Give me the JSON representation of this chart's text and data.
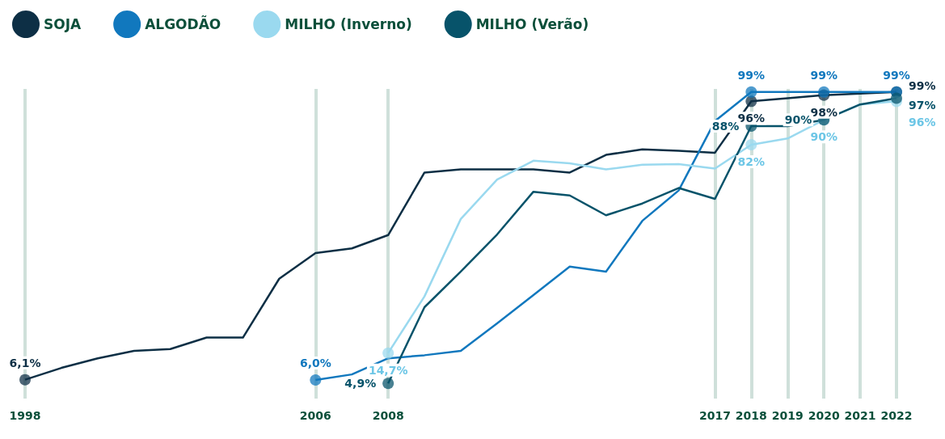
{
  "chart_data": {
    "type": "line",
    "categories": [
      "1998",
      null,
      null,
      null,
      null,
      null,
      null,
      null,
      "2006",
      null,
      "2008",
      null,
      null,
      null,
      null,
      null,
      null,
      null,
      null,
      "2017",
      "2018",
      "2019",
      "2020",
      "2021",
      "2022"
    ],
    "series": [
      {
        "name": "SOJA",
        "color": "#0d2f45",
        "values": [
          6.1,
          9.9,
          13,
          15.4,
          16,
          19.7,
          19.7,
          38.7,
          47,
          48.5,
          52.8,
          73,
          74,
          74,
          74,
          73,
          78.7,
          80.5,
          80,
          79.4,
          96,
          97,
          98,
          98.5,
          99
        ],
        "value_labels": [
          "6,1%",
          null,
          null,
          null,
          null,
          null,
          null,
          null,
          null,
          null,
          null,
          null,
          null,
          null,
          null,
          null,
          null,
          null,
          null,
          null,
          "96%",
          null,
          "98%",
          null,
          "99%"
        ]
      },
      {
        "name": "ALGODÃO",
        "color": "#1178be",
        "values": [
          null,
          null,
          null,
          null,
          null,
          null,
          null,
          null,
          6,
          7.8,
          13,
          14,
          15.4,
          24.3,
          33.4,
          42.6,
          41,
          57.4,
          67.2,
          89.6,
          99,
          99,
          99,
          99,
          99
        ],
        "value_labels": [
          null,
          null,
          null,
          null,
          null,
          null,
          null,
          null,
          "6,0%",
          null,
          null,
          null,
          null,
          null,
          null,
          null,
          null,
          null,
          null,
          null,
          "99%",
          null,
          "99%",
          null,
          "99%"
        ]
      },
      {
        "name": "MILHO (Inverno)",
        "color": "#9ad9ef",
        "values": [
          null,
          null,
          null,
          null,
          null,
          null,
          null,
          null,
          null,
          null,
          14.7,
          33,
          58,
          70.7,
          76.8,
          76,
          74,
          75.5,
          75.7,
          74.3,
          82,
          84,
          90,
          95,
          96
        ],
        "value_labels": [
          null,
          null,
          null,
          null,
          null,
          null,
          null,
          null,
          null,
          null,
          "14,7%",
          null,
          null,
          null,
          null,
          null,
          null,
          null,
          null,
          null,
          "82%",
          null,
          "90%",
          null,
          "96%"
        ]
      },
      {
        "name": "MILHO (Verão)",
        "color": "#07536a",
        "values": [
          null,
          null,
          null,
          null,
          null,
          null,
          null,
          null,
          null,
          null,
          4.9,
          29.5,
          41,
          53,
          66.8,
          65.6,
          59.2,
          63,
          68,
          64.5,
          88,
          88,
          90,
          95,
          97
        ],
        "value_labels": [
          null,
          null,
          null,
          null,
          null,
          null,
          null,
          null,
          null,
          null,
          "4,9%",
          null,
          null,
          null,
          null,
          null,
          null,
          null,
          null,
          null,
          "88%",
          null,
          "90%",
          null,
          "97%"
        ]
      }
    ],
    "grid": "x",
    "legend": "top left"
  }
}
